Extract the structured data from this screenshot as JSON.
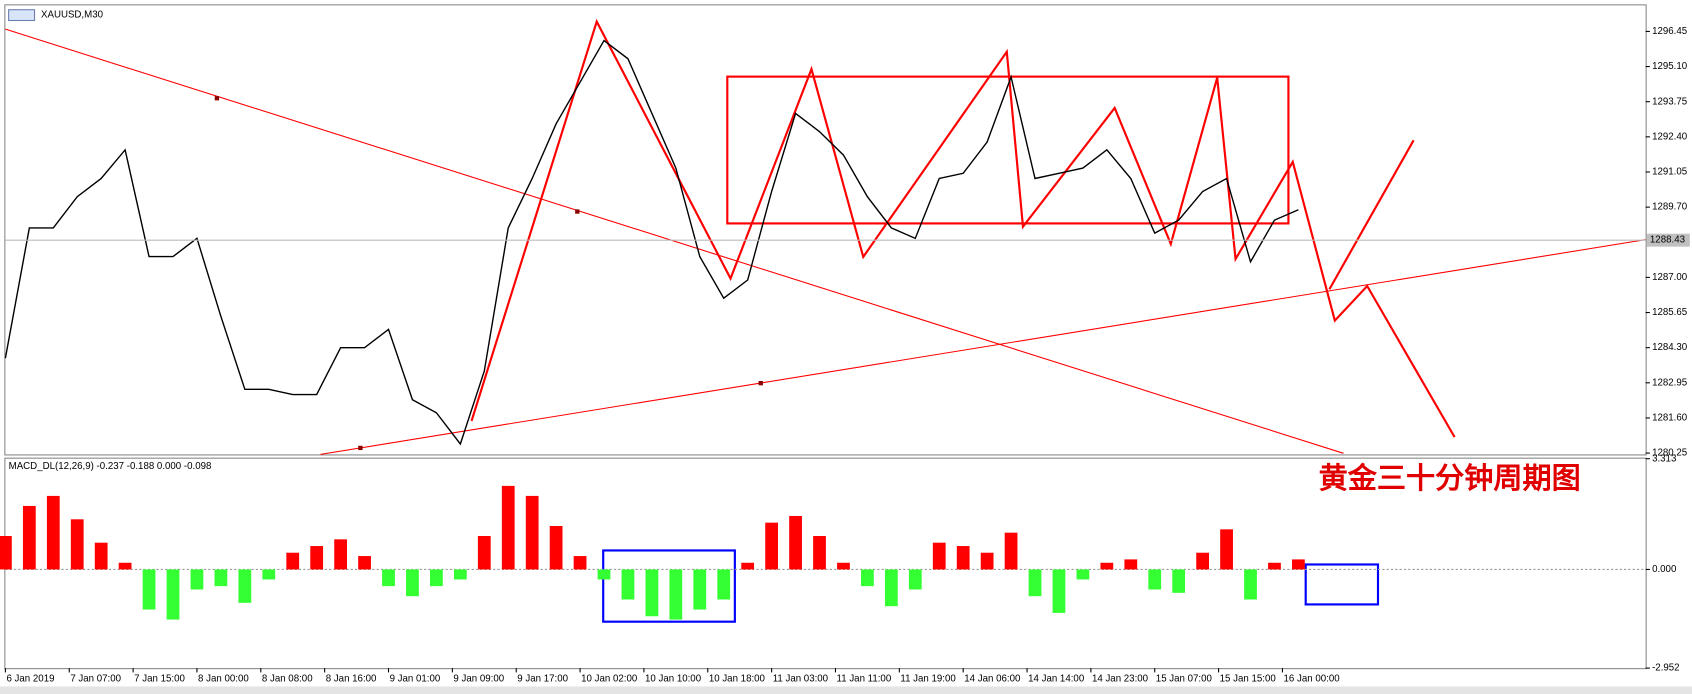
{
  "chart_data": [
    {
      "type": "line",
      "title": "XAUUSD,M30",
      "color": "#000000",
      "x": [
        0,
        6,
        12,
        18,
        24,
        30,
        36,
        42,
        48,
        54,
        60,
        66,
        72,
        78,
        84,
        90,
        96,
        102,
        108,
        114,
        120,
        126,
        132,
        138,
        144,
        150,
        156,
        162,
        168,
        174,
        180,
        186,
        192,
        198,
        204,
        210,
        216,
        222,
        228,
        234,
        240,
        246,
        252,
        258,
        264,
        270,
        276,
        282,
        288,
        294,
        300,
        306,
        312,
        318,
        324
      ],
      "values": [
        1283.9,
        1288.9,
        1288.9,
        1290.1,
        1290.8,
        1291.9,
        1287.8,
        1287.8,
        1288.5,
        1285.5,
        1282.7,
        1282.7,
        1282.5,
        1282.5,
        1284.3,
        1284.3,
        1285.0,
        1282.3,
        1281.8,
        1280.6,
        1283.4,
        1288.9,
        1290.8,
        1292.9,
        1294.5,
        1296.1,
        1295.4,
        1293.3,
        1291.2,
        1287.8,
        1286.2,
        1286.9,
        1290.3,
        1293.3,
        1292.6,
        1291.7,
        1290.1,
        1288.9,
        1288.5,
        1290.8,
        1291.0,
        1292.2,
        1294.7,
        1290.8,
        1291.0,
        1291.2,
        1291.9,
        1290.8,
        1288.7,
        1289.2,
        1290.3,
        1290.8,
        1287.6,
        1289.2,
        1289.6
      ],
      "xlim": [
        0,
        411
      ],
      "xticks": [
        {
          "value": 0,
          "label": "6 Jan 2019"
        },
        {
          "value": 16,
          "label": "7 Jan 07:00"
        },
        {
          "value": 32,
          "label": "7 Jan 15:00"
        },
        {
          "value": 48,
          "label": "8 Jan 00:00"
        },
        {
          "value": 64,
          "label": "8 Jan 08:00"
        },
        {
          "value": 80,
          "label": "8 Jan 16:00"
        },
        {
          "value": 96,
          "label": "9 Jan 01:00"
        },
        {
          "value": 112,
          "label": "9 Jan 09:00"
        },
        {
          "value": 128,
          "label": "9 Jan 17:00"
        },
        {
          "value": 144,
          "label": "10 Jan 02:00"
        },
        {
          "value": 160,
          "label": "10 Jan 10:00"
        },
        {
          "value": 176,
          "label": "10 Jan 18:00"
        },
        {
          "value": 192,
          "label": "11 Jan 03:00"
        },
        {
          "value": 208,
          "label": "11 Jan 11:00"
        },
        {
          "value": 224,
          "label": "11 Jan 19:00"
        },
        {
          "value": 240,
          "label": "14 Jan 06:00"
        },
        {
          "value": 256,
          "label": "14 Jan 14:00"
        },
        {
          "value": 272,
          "label": "14 Jan 23:00"
        },
        {
          "value": 288,
          "label": "15 Jan 07:00"
        },
        {
          "value": 304,
          "label": "15 Jan 15:00"
        },
        {
          "value": 320,
          "label": "16 Jan 00:00"
        }
      ],
      "ylim": [
        1280.2,
        1297.45
      ],
      "yticks": [
        1280.25,
        {
          "value": 1281.6,
          "label": "1281.60"
        },
        1282.95,
        {
          "value": 1284.3,
          "label": "1284.30"
        },
        1285.65,
        {
          "value": 1287,
          "label": "1287.00"
        },
        {
          "value": 1289.7,
          "label": "1289.70"
        },
        1291.05,
        {
          "value": 1292.4,
          "label": "1292.40"
        },
        1293.75,
        {
          "value": 1295.1,
          "label": "1295.10"
        },
        1296.45
      ],
      "current_price": 1288.43
    },
    {
      "type": "bar",
      "title": "MACD_DL(12,26,9) -0.237 -0.188 0.000 -0.098",
      "annotation": "黄金三十分钟周期图",
      "color_positive": "#ff0000",
      "color_negative": "#33ff33",
      "x": [
        0,
        6,
        12,
        18,
        24,
        30,
        36,
        42,
        48,
        54,
        60,
        66,
        72,
        78,
        84,
        90,
        96,
        102,
        108,
        114,
        120,
        126,
        132,
        138,
        144,
        150,
        156,
        162,
        168,
        174,
        180,
        186,
        192,
        198,
        204,
        210,
        216,
        222,
        228,
        234,
        240,
        246,
        252,
        258,
        264,
        270,
        276,
        282,
        288,
        294,
        300,
        306,
        312,
        318,
        324
      ],
      "values": [
        1.0,
        1.9,
        2.2,
        1.5,
        0.8,
        0.2,
        -1.2,
        -1.5,
        -0.6,
        -0.5,
        -1.0,
        -0.3,
        0.5,
        0.7,
        0.9,
        0.4,
        -0.5,
        -0.8,
        -0.5,
        -0.3,
        1.0,
        2.5,
        2.2,
        1.3,
        0.4,
        -0.3,
        -0.9,
        -1.4,
        -1.5,
        -1.2,
        -0.9,
        0.2,
        1.4,
        1.6,
        1.0,
        0.2,
        -0.5,
        -1.1,
        -0.6,
        0.8,
        0.7,
        0.5,
        1.1,
        -0.8,
        -1.3,
        -0.3,
        0.2,
        0.3,
        -0.6,
        -0.7,
        0.5,
        1.2,
        -0.9,
        0.2,
        0.3
      ],
      "xlim": [
        0,
        411
      ],
      "ylim": [
        -2.952,
        3.313
      ],
      "yticks": [
        -2.952,
        {
          "value": 0,
          "label": "0.000"
        },
        3.313
      ]
    }
  ]
}
